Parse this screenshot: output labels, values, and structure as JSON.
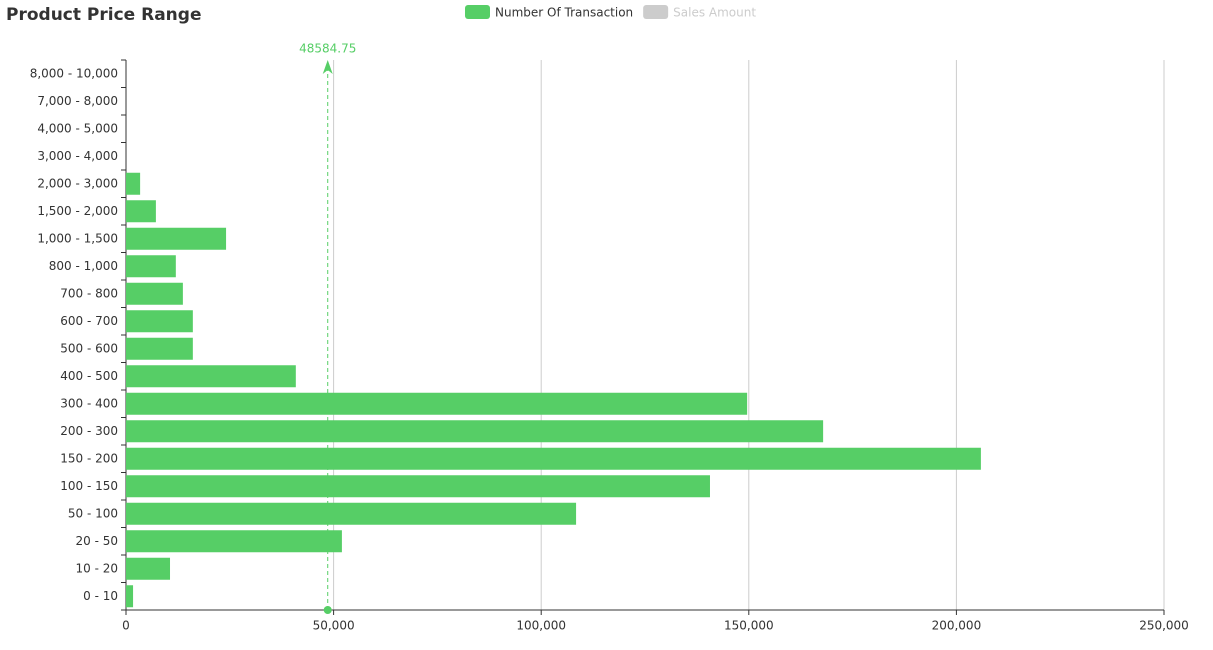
{
  "chart_data": {
    "type": "hbar",
    "title": "Product Price Range",
    "categories": [
      "0 - 10",
      "10 - 20",
      "20 - 50",
      "50 - 100",
      "100 - 150",
      "150 - 200",
      "200 - 300",
      "300 - 400",
      "400 - 500",
      "500 - 600",
      "600 - 700",
      "700 - 800",
      "800 - 1,000",
      "1,000 - 1,500",
      "1,500 - 2,000",
      "2,000 - 3,000",
      "3,000 - 4,000",
      "4,000 - 5,000",
      "7,000 - 8,000",
      "8,000 - 10,000"
    ],
    "series": [
      {
        "name": "Number Of Transaction",
        "color": "#56ce66",
        "visible": true,
        "values": [
          1700,
          10600,
          52000,
          108400,
          140650,
          205900,
          167900,
          149600,
          40900,
          16100,
          16100,
          13700,
          12000,
          24100,
          7200,
          3400,
          0,
          0,
          0,
          0
        ]
      },
      {
        "name": "Sales Amount",
        "color": "#cccccc",
        "visible": false,
        "values": [
          null,
          null,
          null,
          null,
          null,
          null,
          null,
          null,
          null,
          null,
          null,
          null,
          null,
          null,
          null,
          null,
          null,
          null,
          null,
          null
        ]
      }
    ],
    "mark_line": {
      "value": 48584.75,
      "color": "#56ce66"
    },
    "xlim": [
      0,
      250000
    ],
    "xticks": [
      0,
      {
        "value": 50000,
        "label": "50,000"
      },
      {
        "value": 100000,
        "label": "100,000"
      },
      {
        "value": 150000,
        "label": "150,000"
      },
      {
        "value": 200000,
        "label": "200,000"
      },
      {
        "value": 250000,
        "label": "250,000"
      }
    ],
    "grid": true
  }
}
